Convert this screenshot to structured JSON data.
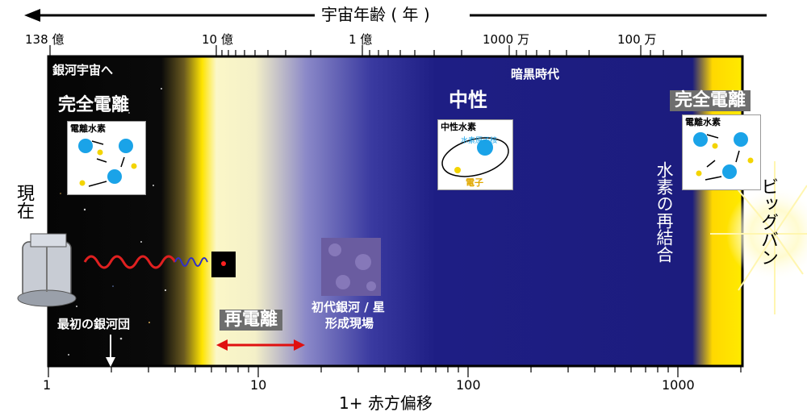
{
  "title": "宇宙年齢 ( 年 )",
  "top_axis": {
    "ticks": [
      "138 億",
      "10 億",
      "1 億",
      "1000 万",
      "100 万"
    ]
  },
  "bottom_axis": {
    "label": "1+ 赤方偏移",
    "ticks": [
      "1",
      "10",
      "100",
      "1000"
    ]
  },
  "regions": {
    "dark_age": "暗黒時代",
    "neutral": "中性",
    "full_ionization_left": "完全電離",
    "full_ionization_right": "完全電離",
    "reionization": "再電離"
  },
  "labels": {
    "to_galaxy_universe": "銀河宇宙へ",
    "present": "現在",
    "first_cluster": "最初の銀河団",
    "first_galaxies": "初代銀河 / 星",
    "formation_site": "形成現場",
    "recombination": "水素の再結合",
    "big_bang": "ビッグバン"
  },
  "insets": {
    "ionized_left": "電離水素",
    "neutral_title": "中性水素",
    "nucleus": "水素原子核",
    "electron": "電子",
    "ionized_right": "電離水素"
  },
  "colors": {
    "dark_blue": "#1c1c7e",
    "yellow": "#ffe600",
    "ion_blue": "#1aa3e8",
    "arrow_red": "#e01010"
  }
}
